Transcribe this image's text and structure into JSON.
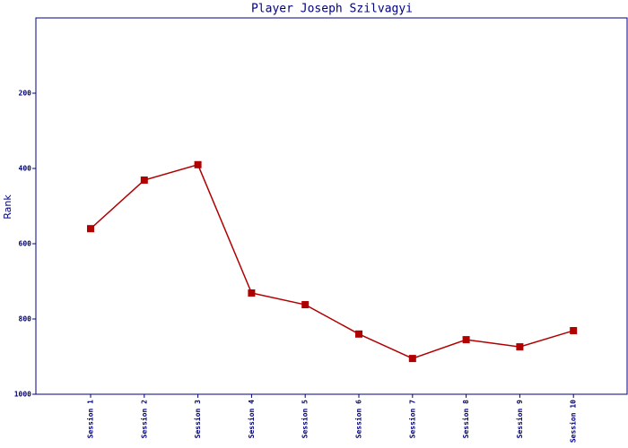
{
  "chart_data": {
    "type": "line",
    "title": "Player Joseph Szilvagyi",
    "y_label": "Rank",
    "categories": [
      "Session 1",
      "Session 2",
      "Session 3",
      "Session 4",
      "Session 5",
      "Session 6",
      "Session 7",
      "Session 8",
      "Session 9",
      "Session 10"
    ],
    "series": [
      {
        "name": "Rank",
        "color": "#b00000",
        "values": [
          560,
          431,
          390,
          731,
          762,
          840,
          905,
          855,
          874,
          831
        ]
      }
    ],
    "ylim": [
      0,
      1000
    ],
    "y_inverted": true,
    "yticks": [
      200,
      400,
      600,
      800,
      1000
    ],
    "axis_color": "#000080"
  }
}
